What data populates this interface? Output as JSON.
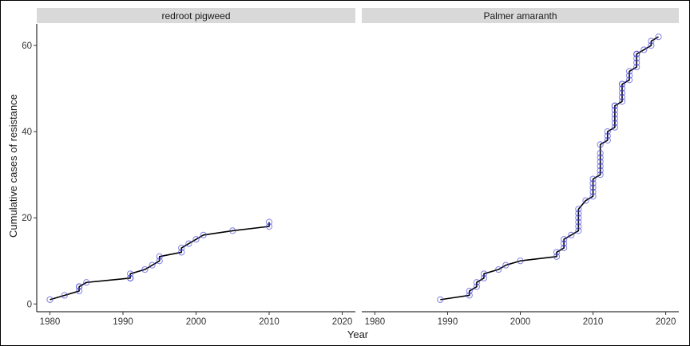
{
  "chart_data": {
    "type": "line",
    "xlabel": "Year",
    "ylabel": "Cumulative cases of resistance",
    "xlim": [
      1978.2,
      2021.8
    ],
    "ylim": [
      -1.8,
      65
    ],
    "x_ticks": [
      1980,
      1990,
      2000,
      2010,
      2020
    ],
    "y_ticks": [
      0,
      20,
      40,
      60
    ],
    "grid": false,
    "line_color": "#000000",
    "point_color": "#4a4ad8",
    "panels": [
      {
        "strip": "redroot pigweed",
        "x": [
          1980,
          1982,
          1984,
          1984,
          1984,
          1985,
          1991,
          1991,
          1991,
          1993,
          1994,
          1995,
          1995,
          1998,
          1998,
          1999,
          2000,
          2001,
          2005,
          2010,
          2010
        ],
        "y": [
          1,
          2,
          3,
          4,
          4,
          5,
          6,
          6,
          7,
          8,
          9,
          10,
          11,
          12,
          13,
          14,
          15,
          16,
          17,
          18,
          19
        ]
      },
      {
        "strip": "Palmer amaranth",
        "x": [
          1989,
          1993,
          1993,
          1994,
          1994,
          1995,
          1995,
          1997,
          1998,
          2000,
          2005,
          2005,
          2006,
          2006,
          2006,
          2007,
          2008,
          2008,
          2008,
          2008,
          2008,
          2008,
          2009,
          2010,
          2010,
          2010,
          2010,
          2010,
          2011,
          2011,
          2011,
          2011,
          2011,
          2011,
          2011,
          2012,
          2012,
          2012,
          2013,
          2013,
          2013,
          2013,
          2013,
          2013,
          2013,
          2014,
          2014,
          2014,
          2014,
          2014,
          2014,
          2015,
          2015,
          2015,
          2016,
          2016,
          2016,
          2016,
          2016,
          2017,
          2018,
          2018,
          2019
        ],
        "y": [
          1,
          2,
          3,
          4,
          5,
          6,
          7,
          8,
          9,
          10,
          11,
          12,
          13,
          14,
          15,
          16,
          17,
          18,
          19,
          20,
          21,
          22,
          24,
          25,
          26,
          27,
          28,
          29,
          30,
          31,
          32,
          33,
          34,
          35,
          37,
          38,
          39,
          40,
          41,
          42,
          43,
          44,
          45,
          46,
          46,
          47,
          48,
          49,
          50,
          51,
          51,
          52,
          53,
          54,
          55,
          56,
          57,
          58,
          58,
          59,
          60,
          61,
          62
        ]
      }
    ]
  }
}
